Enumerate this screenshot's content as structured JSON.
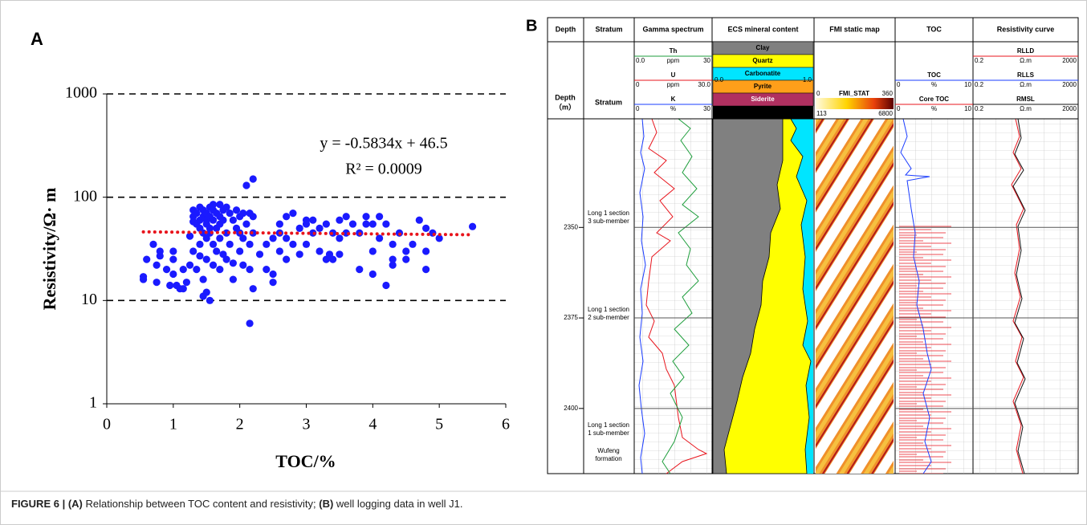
{
  "chart_data": [
    {
      "type": "scatter",
      "panel": "A",
      "equation": "y = -0.5834x + 46.5",
      "r_squared": "R² = 0.0009",
      "xlabel": "TOC/%",
      "ylabel": "Resistivity/Ω· m",
      "xlim": [
        0,
        6
      ],
      "xticks": [
        0,
        1,
        2,
        3,
        4,
        5,
        6
      ],
      "ylim": [
        1,
        1000
      ],
      "yticks": [
        1,
        10,
        100,
        1000
      ],
      "log_y": true,
      "grid": "dashed",
      "color": "#1a1aff",
      "x": [
        0.55,
        0.55,
        0.6,
        0.7,
        0.75,
        0.75,
        0.8,
        0.8,
        0.9,
        0.95,
        1.0,
        1.0,
        1.0,
        1.05,
        1.1,
        1.15,
        1.15,
        1.2,
        1.25,
        1.25,
        1.3,
        1.3,
        1.3,
        1.3,
        1.35,
        1.35,
        1.35,
        1.4,
        1.4,
        1.4,
        1.4,
        1.4,
        1.45,
        1.45,
        1.45,
        1.45,
        1.45,
        1.5,
        1.5,
        1.5,
        1.5,
        1.5,
        1.5,
        1.55,
        1.55,
        1.55,
        1.55,
        1.55,
        1.6,
        1.6,
        1.6,
        1.6,
        1.6,
        1.65,
        1.65,
        1.65,
        1.7,
        1.7,
        1.7,
        1.7,
        1.7,
        1.75,
        1.75,
        1.75,
        1.8,
        1.8,
        1.8,
        1.85,
        1.85,
        1.9,
        1.9,
        1.9,
        1.95,
        1.95,
        2.0,
        2.0,
        2.0,
        2.05,
        2.05,
        2.05,
        2.1,
        2.1,
        2.15,
        2.15,
        2.15,
        2.15,
        2.2,
        2.2,
        2.2,
        2.2,
        2.3,
        2.4,
        2.4,
        2.5,
        2.5,
        2.5,
        2.6,
        2.6,
        2.6,
        2.7,
        2.7,
        2.7,
        2.8,
        2.8,
        2.9,
        2.9,
        3.0,
        3.0,
        3.0,
        3.1,
        3.1,
        3.2,
        3.2,
        3.3,
        3.3,
        3.35,
        3.4,
        3.4,
        3.5,
        3.5,
        3.5,
        3.6,
        3.6,
        3.7,
        3.8,
        3.8,
        3.9,
        3.9,
        4.0,
        4.0,
        4.0,
        4.1,
        4.1,
        4.2,
        4.2,
        4.3,
        4.3,
        4.3,
        4.4,
        4.5,
        4.5,
        4.6,
        4.7,
        4.8,
        4.8,
        4.8,
        4.9,
        5.0,
        5.5
      ],
      "values": [
        17,
        16,
        25,
        35,
        15,
        22,
        30,
        27,
        20,
        14,
        30,
        25,
        18,
        14,
        13,
        20,
        13,
        15,
        22,
        42,
        58,
        65,
        75,
        30,
        70,
        55,
        20,
        60,
        80,
        50,
        35,
        27,
        65,
        75,
        45,
        11,
        16,
        70,
        60,
        55,
        40,
        25,
        12,
        80,
        65,
        50,
        45,
        10,
        75,
        85,
        60,
        35,
        22,
        70,
        50,
        30,
        85,
        65,
        55,
        40,
        20,
        75,
        60,
        28,
        80,
        45,
        25,
        70,
        35,
        60,
        23,
        16,
        75,
        50,
        65,
        45,
        30,
        70,
        40,
        22,
        130,
        55,
        70,
        35,
        6,
        20,
        150,
        65,
        45,
        13,
        28,
        35,
        20,
        40,
        18,
        15,
        55,
        45,
        30,
        65,
        40,
        25,
        70,
        35,
        28,
        50,
        55,
        60,
        35,
        60,
        45,
        50,
        30,
        55,
        25,
        28,
        25,
        45,
        60,
        40,
        28,
        65,
        45,
        55,
        45,
        20,
        65,
        55,
        30,
        18,
        55,
        65,
        40,
        55,
        14,
        35,
        25,
        22,
        45,
        30,
        25,
        35,
        60,
        50,
        30,
        20,
        45,
        40,
        52
      ],
      "trendline": {
        "color": "#e8141c",
        "x": [
          0.55,
          5.5
        ],
        "values": [
          46.18,
          43.29
        ]
      }
    },
    {
      "type": "well-log",
      "panel": "B",
      "columns": [
        "Depth",
        "Stratum",
        "Gamma spectrum",
        "ECS mineral content",
        "FMI static map",
        "TOC",
        "Resistivity curve"
      ],
      "depth_axis_label": [
        "Depth",
        "（m）"
      ],
      "stratum_label": "Stratum",
      "depth_lim": [
        2320,
        2418
      ],
      "depth_ticks": [
        2350,
        2375,
        2400
      ],
      "gamma_curves": [
        {
          "name": "Th",
          "color": "#1e9e3c",
          "min": "0.0",
          "unit": "ppm",
          "max": "30"
        },
        {
          "name": "U",
          "color": "#e8141c",
          "min": "0",
          "unit": "ppm",
          "max": "30.0"
        },
        {
          "name": "K",
          "color": "#1a3cff",
          "min": "0",
          "unit": "%",
          "max": "30"
        }
      ],
      "minerals": [
        {
          "name": "Clay",
          "color": "#808080"
        },
        {
          "name": "Quartz",
          "color": "#ffff00"
        },
        {
          "name": "Carbonatite",
          "color": "#00e5ff"
        },
        {
          "name": "Pyrite",
          "color": "#ff9f1a"
        },
        {
          "name": "Siderite",
          "color": "#b03060"
        }
      ],
      "mineral_scale": [
        "0.0",
        "1.0"
      ],
      "fmi": {
        "name": "FMI_STAT",
        "top_scale": [
          "0",
          "360"
        ],
        "bottom_scale": [
          "113",
          "6800"
        ]
      },
      "toc_curves": [
        {
          "name": "TOC",
          "color": "#1a3cff",
          "min": "0",
          "unit": "%",
          "max": "10"
        },
        {
          "name": "Core TOC",
          "color": "#e8141c",
          "min": "0",
          "unit": "%",
          "max": "10"
        }
      ],
      "resistivity_curves": [
        {
          "name": "RLLD",
          "color": "#e8141c",
          "min": "0.2",
          "unit": "Ω.m",
          "max": "2000"
        },
        {
          "name": "RLLS",
          "color": "#1a3cff",
          "min": "0.2",
          "unit": "Ω.m",
          "max": "2000"
        },
        {
          "name": "RMSL",
          "color": "#111111",
          "min": "0.2",
          "unit": "Ω.m",
          "max": "2000"
        }
      ],
      "strata": [
        [
          "Long 1 section",
          "3 sub-member"
        ],
        [
          "Long 1 section",
          "2 sub-member"
        ],
        [
          "Long 1 section",
          "1 sub-member"
        ],
        [
          "Wufeng",
          "formation"
        ]
      ]
    }
  ],
  "caption": {
    "figure": "FIGURE 6 |",
    "a_tag": "(A)",
    "a_text": "Relationship between TOC content and resistivity;",
    "b_tag": "(B)",
    "b_text": "well logging data in well J1."
  }
}
